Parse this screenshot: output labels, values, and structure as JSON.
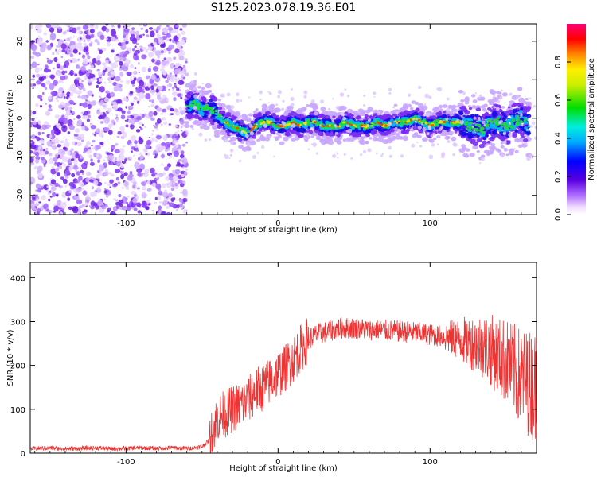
{
  "title": "S125.2023.078.19.36.E01",
  "colors": {
    "snr_line": "#ee3333",
    "axis": "#000000"
  },
  "chart_data": [
    {
      "type": "heatmap",
      "xlabel": "Height of straight line (km)",
      "ylabel": "Frequency (Hz)",
      "xlim": [
        -163,
        170
      ],
      "ylim": [
        -25,
        24.5
      ],
      "xticks": [
        -100,
        0,
        100
      ],
      "yticks": [
        -20,
        -10,
        0,
        10,
        20
      ],
      "noise_region_x": [
        -163,
        -60
      ],
      "signal_trace": {
        "x": [
          -60,
          -55,
          -50,
          -45,
          -40,
          -35,
          -30,
          -25,
          -20,
          -15,
          -10,
          -5,
          0,
          5,
          10,
          15,
          20,
          25,
          30,
          35,
          40,
          45,
          50,
          55,
          60,
          65,
          70,
          75,
          80,
          85,
          90,
          95,
          100,
          105,
          110,
          115,
          120,
          125,
          130,
          135,
          140,
          145,
          150,
          155,
          160,
          165
        ],
        "y": [
          3,
          4,
          2,
          3,
          1,
          -1,
          -2,
          -3,
          -4,
          -2,
          -1,
          -1,
          -2,
          -2,
          -1,
          -2,
          -1,
          -1,
          -2,
          -2,
          -2,
          -1,
          -2,
          -2,
          -2,
          -1,
          -2,
          -1,
          -1,
          -1,
          0,
          -1,
          -2,
          -1,
          -1,
          -1,
          -1,
          -2,
          -2,
          -3,
          -1,
          -1,
          -2,
          -1,
          0,
          -2
        ]
      },
      "colorbar": {
        "label": "Normalized spectral amplitude",
        "ticks": [
          "0.0",
          "0.2",
          "0.4",
          "0.6",
          "0.8"
        ],
        "range": [
          0,
          1
        ]
      }
    },
    {
      "type": "line",
      "xlabel": "Height of straight line (km)",
      "ylabel": "SNR (10 * v/v)",
      "xlim": [
        -163,
        170
      ],
      "ylim": [
        0,
        435
      ],
      "xticks": [
        -100,
        0,
        100
      ],
      "yticks": [
        0,
        100,
        200,
        300,
        400
      ],
      "series": [
        {
          "x": [
            -163,
            -150,
            -140,
            -130,
            -120,
            -110,
            -100,
            -90,
            -80,
            -70,
            -60,
            -55,
            -50,
            -45,
            -42,
            -40,
            -35,
            -30,
            -25,
            -20,
            -15,
            -10,
            -5,
            0,
            5,
            10,
            15,
            20,
            25,
            30,
            40,
            50,
            60,
            70,
            80,
            90,
            100,
            110,
            120,
            130,
            135,
            140,
            145,
            150,
            155,
            160,
            165,
            170
          ],
          "y": [
            10,
            12,
            10,
            11,
            12,
            10,
            11,
            12,
            11,
            12,
            11,
            12,
            15,
            30,
            60,
            80,
            90,
            100,
            110,
            120,
            140,
            150,
            165,
            180,
            195,
            215,
            240,
            260,
            270,
            275,
            285,
            285,
            282,
            280,
            278,
            275,
            270,
            265,
            260,
            250,
            245,
            235,
            220,
            210,
            190,
            170,
            160,
            150
          ]
        }
      ]
    }
  ]
}
